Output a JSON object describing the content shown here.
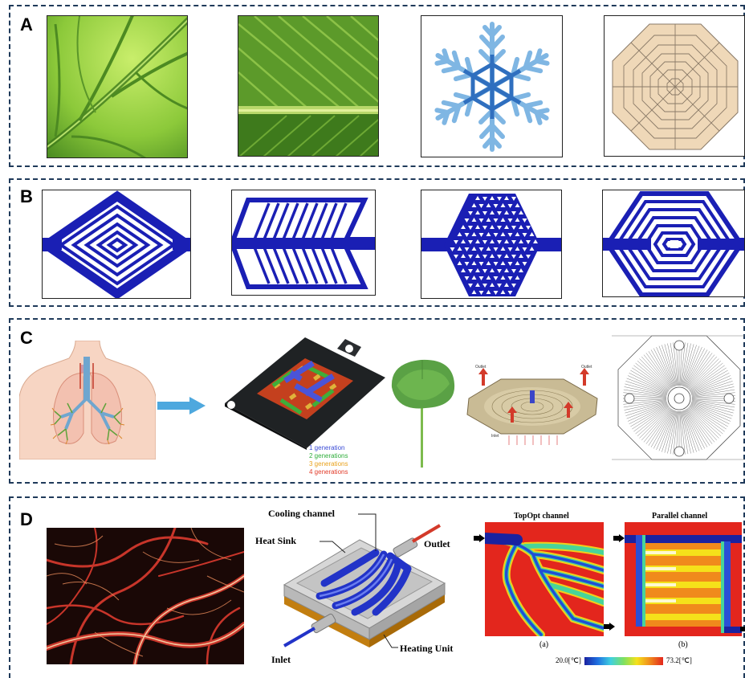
{
  "panels": [
    {
      "label": "A"
    },
    {
      "label": "B"
    },
    {
      "label": "C"
    },
    {
      "label": "D"
    }
  ],
  "panel_c": {
    "legend": [
      {
        "text": "1 generation",
        "color": "#3a4bd6"
      },
      {
        "text": "2 generations",
        "color": "#2fae3b"
      },
      {
        "text": "3 generations",
        "color": "#e9a21d"
      },
      {
        "text": "4 generations",
        "color": "#e23c2a"
      }
    ],
    "labels": {
      "outlet_a": "Outlet",
      "outlet_b": "Outlet",
      "inlet": "Inlet"
    }
  },
  "panel_d": {
    "heat_sink_labels": {
      "cooling_channel": "Cooling channel",
      "heat_sink": "Heat Sink",
      "outlet": "Outlet",
      "inlet": "Inlet",
      "heating_unit": "Heating Unit"
    },
    "sim_titles": {
      "left": "TopOpt channel",
      "right": "Parallel channel"
    },
    "sim_captions": {
      "left": "(a)",
      "right": "(b)"
    },
    "colorbar": {
      "min": "20.0[℃]",
      "max": "73.2[℃]"
    }
  },
  "colors": {
    "channel_blue": "#1a1fb4",
    "frame_dash": "#1f3a5a",
    "leaf_green": "#7cc23a",
    "snow_blue": "#4c92d0",
    "web_tan": "#efd8b8",
    "heat_red": "#e3261d",
    "vessel_red": "#c8352a"
  }
}
